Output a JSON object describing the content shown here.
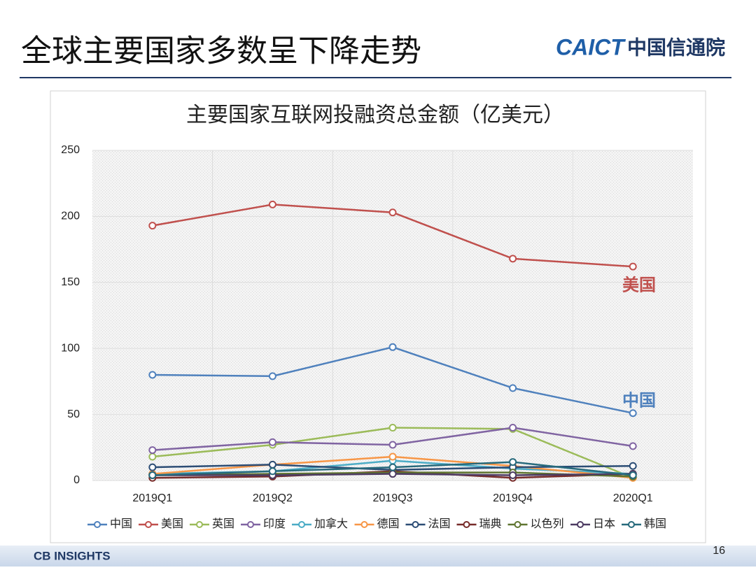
{
  "header": {
    "title": "全球主要国家多数呈下降走势",
    "logo_en": "CAICT",
    "logo_cn": "中国信通院"
  },
  "chart_data": {
    "type": "line",
    "title": "主要国家互联网投融资总金额（亿美元）",
    "categories": [
      "2019Q1",
      "2019Q2",
      "2019Q3",
      "2019Q4",
      "2020Q1"
    ],
    "series": [
      {
        "name": "中国",
        "color": "#4f81bd",
        "values": [
          80,
          79,
          101,
          70,
          51
        ]
      },
      {
        "name": "美国",
        "color": "#c0504d",
        "values": [
          193,
          209,
          203,
          168,
          162
        ]
      },
      {
        "name": "英国",
        "color": "#9bbb59",
        "values": [
          18,
          27,
          40,
          39,
          2
        ]
      },
      {
        "name": "印度",
        "color": "#8064a2",
        "values": [
          23,
          29,
          27,
          40,
          26
        ]
      },
      {
        "name": "加拿大",
        "color": "#4bacc6",
        "values": [
          5,
          7,
          15,
          9,
          5
        ]
      },
      {
        "name": "德国",
        "color": "#f79646",
        "values": [
          5,
          12,
          18,
          11,
          2
        ]
      },
      {
        "name": "法国",
        "color": "#2c4d75",
        "values": [
          10,
          12,
          8,
          10,
          11
        ]
      },
      {
        "name": "瑞典",
        "color": "#772c2a",
        "values": [
          2,
          3,
          7,
          2,
          5
        ]
      },
      {
        "name": "以色列",
        "color": "#5f7530",
        "values": [
          4,
          5,
          6,
          6,
          3
        ]
      },
      {
        "name": "日本",
        "color": "#4d3b62",
        "values": [
          4,
          4,
          5,
          4,
          5
        ]
      },
      {
        "name": "韩国",
        "color": "#276a7c",
        "values": [
          4,
          7,
          10,
          14,
          4
        ]
      }
    ],
    "ylim": [
      0,
      250
    ],
    "yticks": [
      0,
      50,
      100,
      150,
      200,
      250
    ],
    "grid": true,
    "legend": "bottom",
    "annotations": [
      "美国",
      "中国"
    ]
  },
  "footer": {
    "source_logo": "CB INSIGHTS",
    "page_number": "16"
  }
}
